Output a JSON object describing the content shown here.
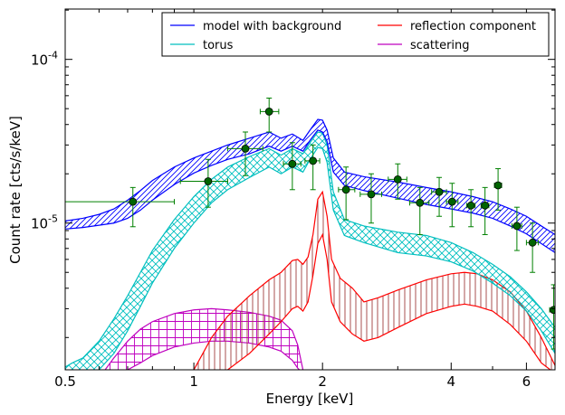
{
  "chart_data": {
    "type": "line",
    "xlabel": "Energy [keV]",
    "ylabel": "Count rate [cts/s/keV]",
    "xscale": "log",
    "yscale": "log",
    "xlim": [
      0.5,
      7.0
    ],
    "ylim": [
      1.27e-06,
      0.000203
    ],
    "xticks": [
      {
        "value": 0.5,
        "label": "0.5"
      },
      {
        "value": 1,
        "label": "1"
      },
      {
        "value": 2,
        "label": "2"
      },
      {
        "value": 4,
        "label": "4"
      },
      {
        "value": 6,
        "label": "6"
      }
    ],
    "yticks": [
      {
        "value": 1e-05,
        "base": "10",
        "exp": "-5"
      },
      {
        "value": 0.0001,
        "base": "10",
        "exp": "-4"
      }
    ],
    "legend": {
      "placement": "top-right",
      "entries": [
        {
          "name": "model with background",
          "color": "#0000ff"
        },
        {
          "name": "reflection component",
          "color": "#ff0000"
        },
        {
          "name": "torus",
          "color": "#00bfbf"
        },
        {
          "name": "scattering",
          "color": "#bf00bf"
        }
      ]
    },
    "colors": {
      "model": "#0000ff",
      "torus": "#00bfbf",
      "reflection": "#ff0000",
      "reflection_hatch": "#a03c3c",
      "scattering": "#bf00bf",
      "data": "#008000",
      "data_fill": "#006400"
    },
    "series": [
      {
        "name": "model with background",
        "band": true,
        "x": [
          0.5,
          0.55,
          0.6,
          0.65,
          0.7,
          0.75,
          0.8,
          0.9,
          1.0,
          1.1,
          1.2,
          1.35,
          1.5,
          1.6,
          1.7,
          1.8,
          1.87,
          1.95,
          2.0,
          2.05,
          2.12,
          2.25,
          2.5,
          3.0,
          3.5,
          4.0,
          4.5,
          5.0,
          5.5,
          6.0,
          6.5,
          7.0
        ],
        "upper": [
          1.03e-05,
          1.07e-05,
          1.13e-05,
          1.22e-05,
          1.38e-05,
          1.58e-05,
          1.82e-05,
          2.2e-05,
          2.5e-05,
          2.75e-05,
          3e-05,
          3.3e-05,
          3.6e-05,
          3.3e-05,
          3.5e-05,
          3.2e-05,
          3.7e-05,
          4.3e-05,
          4.25e-05,
          3.7e-05,
          2.5e-05,
          2.05e-05,
          1.92e-05,
          1.78e-05,
          1.65e-05,
          1.55e-05,
          1.45e-05,
          1.35e-05,
          1.22e-05,
          1.1e-05,
          9.6e-06,
          8.5e-06
        ],
        "lower": [
          9.2e-06,
          9.4e-06,
          9.7e-06,
          1e-05,
          1.07e-05,
          1.2e-05,
          1.38e-05,
          1.72e-05,
          2.02e-05,
          2.25e-05,
          2.45e-05,
          2.65e-05,
          2.95e-05,
          2.75e-05,
          2.95e-05,
          2.75e-05,
          3.2e-05,
          3.7e-05,
          3.6e-05,
          3.15e-05,
          2.05e-05,
          1.7e-05,
          1.58e-05,
          1.42e-05,
          1.3e-05,
          1.22e-05,
          1.15e-05,
          1.07e-05,
          9.6e-06,
          8.6e-06,
          7.5e-06,
          6.6e-06
        ]
      },
      {
        "name": "torus",
        "band": true,
        "x": [
          0.5,
          0.52,
          0.55,
          0.6,
          0.65,
          0.7,
          0.75,
          0.8,
          0.9,
          1.0,
          1.1,
          1.2,
          1.35,
          1.5,
          1.6,
          1.7,
          1.8,
          1.87,
          1.95,
          2.0,
          2.05,
          2.12,
          2.25,
          2.5,
          3.0,
          3.5,
          4.0,
          4.5,
          5.0,
          5.5,
          6.0,
          6.5,
          7.0
        ],
        "upper": [
          1.32e-06,
          1.4e-06,
          1.5e-06,
          1.9e-06,
          2.6e-06,
          3.6e-06,
          5e-06,
          6.8e-06,
          1.05e-05,
          1.45e-05,
          1.85e-05,
          2.2e-05,
          2.55e-05,
          2.85e-05,
          2.6e-05,
          2.85e-05,
          2.65e-05,
          3.1e-05,
          3.6e-05,
          3.55e-05,
          3e-05,
          1.55e-05,
          1.05e-05,
          9.6e-06,
          8.8e-06,
          8.4e-06,
          7.6e-06,
          6.6e-06,
          5.6e-06,
          4.7e-06,
          3.8e-06,
          3e-06,
          2.3e-06
        ],
        "lower": [
          null,
          null,
          null,
          1.27e-06,
          1.6e-06,
          2.2e-06,
          3.1e-06,
          4.3e-06,
          7e-06,
          1e-05,
          1.33e-05,
          1.6e-05,
          1.9e-05,
          2.2e-05,
          2e-05,
          2.2e-05,
          2.05e-05,
          2.45e-05,
          2.9e-05,
          2.85e-05,
          2.35e-05,
          1.2e-05,
          8.4e-06,
          7.6e-06,
          6.6e-06,
          6.3e-06,
          5.8e-06,
          5.1e-06,
          4.3e-06,
          3.6e-06,
          2.9e-06,
          2.2e-06,
          1.6e-06
        ]
      },
      {
        "name": "reflection component",
        "band": true,
        "x": [
          1.0,
          1.05,
          1.1,
          1.2,
          1.35,
          1.5,
          1.6,
          1.7,
          1.75,
          1.8,
          1.85,
          1.9,
          1.95,
          2.0,
          2.05,
          2.1,
          2.2,
          2.35,
          2.5,
          2.7,
          3.0,
          3.5,
          4.0,
          4.3,
          4.6,
          5.0,
          5.5,
          6.0,
          6.5,
          7.0
        ],
        "upper": [
          1.27e-06,
          1.6e-06,
          2e-06,
          2.7e-06,
          3.6e-06,
          4.5e-06,
          5e-06,
          5.9e-06,
          6e-06,
          5.6e-06,
          6.2e-06,
          8.5e-06,
          1.4e-05,
          1.55e-05,
          1.1e-05,
          6e-06,
          4.6e-06,
          4e-06,
          3.3e-06,
          3.5e-06,
          3.9e-06,
          4.5e-06,
          4.9e-06,
          5e-06,
          4.9e-06,
          4.5e-06,
          3.8e-06,
          2.9e-06,
          2e-06,
          1.35e-06
        ],
        "lower": [
          null,
          null,
          null,
          1.27e-06,
          1.6e-06,
          2.1e-06,
          2.5e-06,
          3e-06,
          3.1e-06,
          2.9e-06,
          3.3e-06,
          4.8e-06,
          7.5e-06,
          8.5e-06,
          6e-06,
          3.3e-06,
          2.5e-06,
          2.1e-06,
          1.9e-06,
          2e-06,
          2.3e-06,
          2.8e-06,
          3.1e-06,
          3.2e-06,
          3.1e-06,
          2.9e-06,
          2.4e-06,
          1.9e-06,
          1.4e-06,
          null
        ]
      },
      {
        "name": "scattering",
        "band": true,
        "x": [
          0.62,
          0.65,
          0.7,
          0.75,
          0.8,
          0.9,
          1.0,
          1.1,
          1.2,
          1.35,
          1.5,
          1.6,
          1.7,
          1.75,
          1.8
        ],
        "upper": [
          1.27e-06,
          1.5e-06,
          1.9e-06,
          2.25e-06,
          2.5e-06,
          2.8e-06,
          2.95e-06,
          3e-06,
          2.95e-06,
          2.85e-06,
          2.7e-06,
          2.55e-06,
          2.2e-06,
          1.8e-06,
          1.27e-06
        ],
        "lower": [
          null,
          null,
          1.27e-06,
          1.4e-06,
          1.55e-06,
          1.75e-06,
          1.85e-06,
          1.9e-06,
          1.9e-06,
          1.85e-06,
          1.75e-06,
          1.65e-06,
          1.45e-06,
          1.3e-06,
          null
        ]
      }
    ],
    "data_points": [
      {
        "x": 0.72,
        "y": 1.35e-05,
        "xlo": 0.5,
        "xhi": 0.9,
        "ylo": 9.5e-06,
        "yhi": 1.65e-05
      },
      {
        "x": 1.08,
        "y": 1.8e-05,
        "xlo": 0.93,
        "xhi": 1.2,
        "ylo": 1.25e-05,
        "yhi": 2.45e-05
      },
      {
        "x": 1.32,
        "y": 2.85e-05,
        "xlo": 1.2,
        "xhi": 1.45,
        "ylo": 1.95e-05,
        "yhi": 3.6e-05
      },
      {
        "x": 1.5,
        "y": 4.8e-05,
        "xlo": 1.43,
        "xhi": 1.58,
        "ylo": 3.6e-05,
        "yhi": 5.8e-05
      },
      {
        "x": 1.7,
        "y": 2.3e-05,
        "xlo": 1.62,
        "xhi": 1.78,
        "ylo": 1.6e-05,
        "yhi": 3.1e-05
      },
      {
        "x": 1.9,
        "y": 2.4e-05,
        "xlo": 1.82,
        "xhi": 1.97,
        "ylo": 1.6e-05,
        "yhi": 3e-05
      },
      {
        "x": 2.27,
        "y": 1.6e-05,
        "xlo": 2.18,
        "xhi": 2.38,
        "ylo": 1.05e-05,
        "yhi": 2.2e-05
      },
      {
        "x": 2.6,
        "y": 1.5e-05,
        "xlo": 2.45,
        "xhi": 2.75,
        "ylo": 1e-05,
        "yhi": 2e-05
      },
      {
        "x": 3.0,
        "y": 1.85e-05,
        "xlo": 2.85,
        "xhi": 3.15,
        "ylo": 1.4e-05,
        "yhi": 2.3e-05
      },
      {
        "x": 3.38,
        "y": 1.33e-05,
        "xlo": 3.2,
        "xhi": 3.55,
        "ylo": 8.5e-06,
        "yhi": 1.65e-05
      },
      {
        "x": 3.75,
        "y": 1.55e-05,
        "xlo": 3.6,
        "xhi": 3.9,
        "ylo": 1.1e-05,
        "yhi": 1.9e-05
      },
      {
        "x": 4.02,
        "y": 1.35e-05,
        "xlo": 3.9,
        "xhi": 4.15,
        "ylo": 9.5e-06,
        "yhi": 1.75e-05
      },
      {
        "x": 4.45,
        "y": 1.28e-05,
        "xlo": 4.35,
        "xhi": 4.55,
        "ylo": 9.5e-06,
        "yhi": 1.6e-05
      },
      {
        "x": 4.8,
        "y": 1.28e-05,
        "xlo": 4.7,
        "xhi": 4.9,
        "ylo": 8.5e-06,
        "yhi": 1.65e-05
      },
      {
        "x": 5.15,
        "y": 1.7e-05,
        "xlo": 5.05,
        "xhi": 5.25,
        "ylo": 1.2e-05,
        "yhi": 2.15e-05
      },
      {
        "x": 5.7,
        "y": 9.6e-06,
        "xlo": 5.55,
        "xhi": 5.85,
        "ylo": 6.8e-06,
        "yhi": 1.25e-05
      },
      {
        "x": 6.2,
        "y": 7.6e-06,
        "xlo": 6.0,
        "xhi": 6.4,
        "ylo": 5e-06,
        "yhi": 1e-05
      },
      {
        "x": 6.95,
        "y": 2.95e-06,
        "xlo": 6.8,
        "xhi": 7.0,
        "ylo": 1.7e-06,
        "yhi": 4.2e-06
      }
    ]
  }
}
